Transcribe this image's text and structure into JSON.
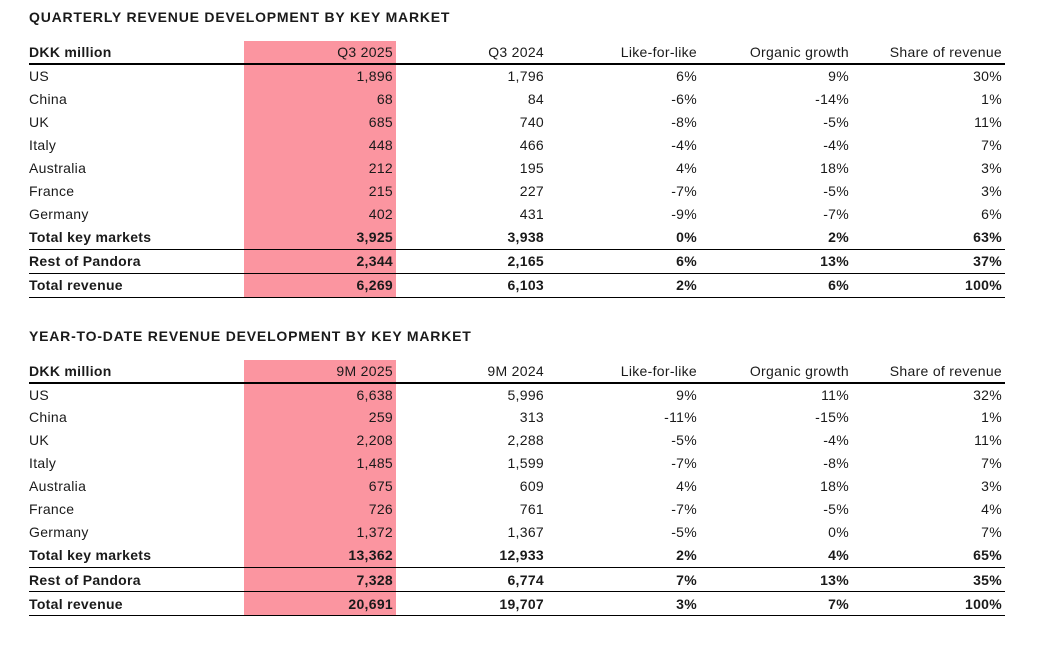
{
  "page": {
    "background": "#ffffff",
    "text_color": "#1a1a1a",
    "highlight_color": "#FB95A0",
    "rule_color": "#000000"
  },
  "tables": [
    {
      "title": "QUARTERLY REVENUE DEVELOPMENT BY KEY MARKET",
      "unit_label": "DKK million",
      "columns": [
        "Q3 2025",
        "Q3 2024",
        "Like-for-like",
        "Organic growth",
        "Share of revenue"
      ],
      "highlighted_column": "Q3 2025",
      "rows": [
        {
          "label": "US",
          "values": [
            "1,896",
            "1,796",
            "6%",
            "9%",
            "30%"
          ],
          "total": false
        },
        {
          "label": "China",
          "values": [
            "68",
            "84",
            "-6%",
            "-14%",
            "1%"
          ],
          "total": false
        },
        {
          "label": "UK",
          "values": [
            "685",
            "740",
            "-8%",
            "-5%",
            "11%"
          ],
          "total": false
        },
        {
          "label": "Italy",
          "values": [
            "448",
            "466",
            "-4%",
            "-4%",
            "7%"
          ],
          "total": false
        },
        {
          "label": "Australia",
          "values": [
            "212",
            "195",
            "4%",
            "18%",
            "3%"
          ],
          "total": false
        },
        {
          "label": "France",
          "values": [
            "215",
            "227",
            "-7%",
            "-5%",
            "3%"
          ],
          "total": false
        },
        {
          "label": "Germany",
          "values": [
            "402",
            "431",
            "-9%",
            "-7%",
            "6%"
          ],
          "total": false
        },
        {
          "label": "Total key markets",
          "values": [
            "3,925",
            "3,938",
            "0%",
            "2%",
            "63%"
          ],
          "total": true
        },
        {
          "label": "Rest of Pandora",
          "values": [
            "2,344",
            "2,165",
            "6%",
            "13%",
            "37%"
          ],
          "total": true
        },
        {
          "label": "Total revenue",
          "values": [
            "6,269",
            "6,103",
            "2%",
            "6%",
            "100%"
          ],
          "total": true
        }
      ]
    },
    {
      "title": "YEAR-TO-DATE REVENUE DEVELOPMENT BY KEY MARKET",
      "unit_label": "DKK million",
      "columns": [
        "9M 2025",
        "9M 2024",
        "Like-for-like",
        "Organic growth",
        "Share of revenue"
      ],
      "highlighted_column": "9M 2025",
      "rows": [
        {
          "label": "US",
          "values": [
            "6,638",
            "5,996",
            "9%",
            "11%",
            "32%"
          ],
          "total": false
        },
        {
          "label": "China",
          "values": [
            "259",
            "313",
            "-11%",
            "-15%",
            "1%"
          ],
          "total": false
        },
        {
          "label": "UK",
          "values": [
            "2,208",
            "2,288",
            "-5%",
            "-4%",
            "11%"
          ],
          "total": false
        },
        {
          "label": "Italy",
          "values": [
            "1,485",
            "1,599",
            "-7%",
            "-8%",
            "7%"
          ],
          "total": false
        },
        {
          "label": "Australia",
          "values": [
            "675",
            "609",
            "4%",
            "18%",
            "3%"
          ],
          "total": false
        },
        {
          "label": "France",
          "values": [
            "726",
            "761",
            "-7%",
            "-5%",
            "4%"
          ],
          "total": false
        },
        {
          "label": "Germany",
          "values": [
            "1,372",
            "1,367",
            "-5%",
            "0%",
            "7%"
          ],
          "total": false
        },
        {
          "label": "Total key markets",
          "values": [
            "13,362",
            "12,933",
            "2%",
            "4%",
            "65%"
          ],
          "total": true
        },
        {
          "label": "Rest of Pandora",
          "values": [
            "7,328",
            "6,774",
            "7%",
            "13%",
            "35%"
          ],
          "total": true
        },
        {
          "label": "Total revenue",
          "values": [
            "20,691",
            "19,707",
            "3%",
            "7%",
            "100%"
          ],
          "total": true
        }
      ]
    }
  ]
}
